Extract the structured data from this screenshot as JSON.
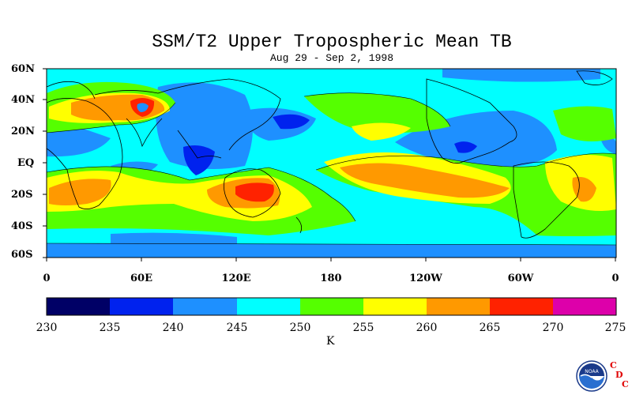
{
  "title": "SSM/T2 Upper Tropospheric Mean TB",
  "subtitle": "Aug 29 - Sep 2, 1998",
  "lat_labels": [
    "60N",
    "40N",
    "20N",
    "EQ",
    "20S",
    "40S",
    "60S"
  ],
  "lon_labels": [
    "0",
    "60E",
    "120E",
    "180",
    "120W",
    "60W",
    "0"
  ],
  "colorbar": {
    "ticks": [
      "230",
      "235",
      "240",
      "245",
      "250",
      "255",
      "260",
      "265",
      "270",
      "275"
    ],
    "colors": [
      "#000066",
      "#0022ee",
      "#1e90ff",
      "#00ffff",
      "#55ff00",
      "#ffff00",
      "#ff9900",
      "#ff2200",
      "#dd00aa"
    ],
    "unit": "K"
  },
  "logo": {
    "name": "NOAA",
    "org_letters": [
      "C",
      "D",
      "C"
    ]
  },
  "map_colors": {
    "background": "#00ffff",
    "level_240": "#1e90ff",
    "level_235": "#0022ee",
    "level_250": "#55ff00",
    "level_255": "#ffff00",
    "level_260": "#ff9900",
    "level_265": "#ff2200"
  }
}
